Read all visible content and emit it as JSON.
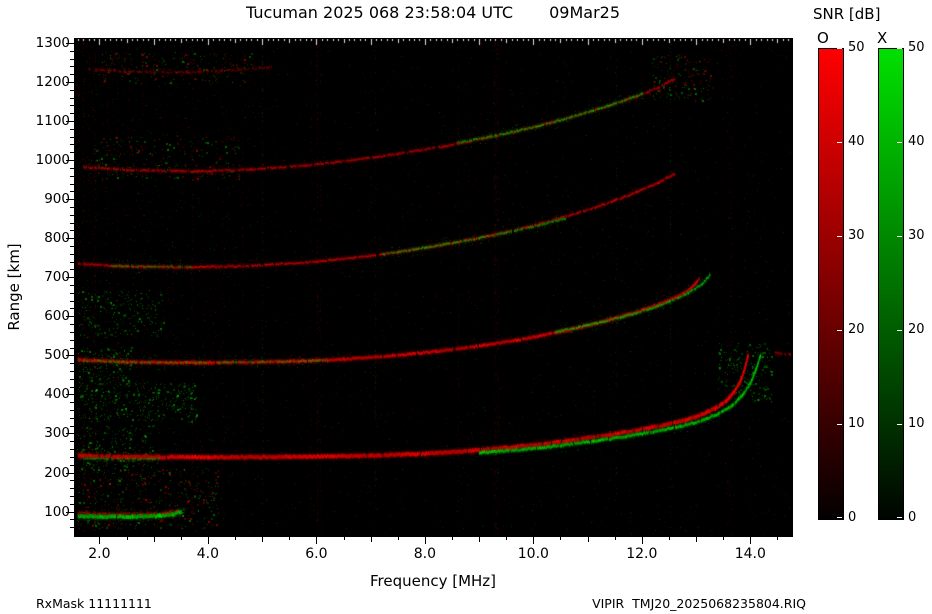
{
  "header": {
    "station_time": "Tucuman 2025 068 23:58:04 UTC",
    "date": "09Mar25"
  },
  "footer": {
    "left": "RxMask 11111111",
    "right": "VIPIR  TMJ20_2025068235804.RIQ"
  },
  "colorbar": {
    "title": "SNR [dB]",
    "o_label": "O",
    "x_label": "X",
    "min": 0,
    "max": 50,
    "ticks": [
      0,
      10,
      20,
      30,
      40,
      50
    ],
    "o_color": "#ff0000",
    "x_color": "#00dd00"
  },
  "chart_data": {
    "type": "heatmap",
    "title": "Tucuman 2025 068 23:58:04 UTC 09Mar25",
    "xlabel": "Frequency [MHz]",
    "ylabel": "Range [km]",
    "xlim": [
      1.55,
      14.75
    ],
    "ylim": [
      40,
      1310
    ],
    "xticks": [
      2,
      4,
      6,
      8,
      10,
      12,
      14
    ],
    "xtick_labels": [
      "2.0",
      "4.0",
      "6.0",
      "8.0",
      "10.0",
      "12.0",
      "14.0"
    ],
    "yticks": [
      100,
      200,
      300,
      400,
      500,
      600,
      700,
      800,
      900,
      1000,
      1100,
      1200,
      1300
    ],
    "background": "#000000",
    "modes": {
      "O": "#ff0000",
      "X": "#00dd00"
    },
    "traces": [
      {
        "name": "E-layer-X",
        "mode": "X",
        "w": 4,
        "alpha": 0.95,
        "points": [
          [
            1.6,
            88
          ],
          [
            2.0,
            87
          ],
          [
            2.6,
            87
          ],
          [
            3.1,
            89
          ],
          [
            3.35,
            93
          ],
          [
            3.5,
            100
          ]
        ]
      },
      {
        "name": "E-layer-O",
        "mode": "O",
        "w": 2,
        "alpha": 0.55,
        "points": [
          [
            1.6,
            97
          ],
          [
            2.1,
            95
          ],
          [
            2.7,
            95
          ],
          [
            3.2,
            97
          ],
          [
            3.45,
            103
          ]
        ]
      },
      {
        "name": "F-1hop-O",
        "mode": "O",
        "w": 4,
        "alpha": 0.95,
        "points": [
          [
            1.6,
            243
          ],
          [
            2.5,
            240
          ],
          [
            4.0,
            239
          ],
          [
            5.5,
            240
          ],
          [
            7.0,
            243
          ],
          [
            8.0,
            248
          ],
          [
            8.8,
            255
          ],
          [
            9.5,
            263
          ],
          [
            10.2,
            273
          ],
          [
            10.8,
            284
          ],
          [
            11.4,
            296
          ],
          [
            11.9,
            308
          ],
          [
            12.4,
            321
          ],
          [
            12.8,
            334
          ],
          [
            13.1,
            348
          ],
          [
            13.35,
            364
          ],
          [
            13.55,
            383
          ],
          [
            13.7,
            407
          ],
          [
            13.82,
            437
          ],
          [
            13.9,
            470
          ],
          [
            13.95,
            500
          ]
        ]
      },
      {
        "name": "F-1hop-X",
        "mode": "X",
        "w": 3,
        "alpha": 0.9,
        "points": [
          [
            9.0,
            250
          ],
          [
            9.8,
            259
          ],
          [
            10.5,
            269
          ],
          [
            11.1,
            280
          ],
          [
            11.7,
            292
          ],
          [
            12.2,
            304
          ],
          [
            12.7,
            318
          ],
          [
            13.1,
            333
          ],
          [
            13.4,
            350
          ],
          [
            13.65,
            371
          ],
          [
            13.85,
            398
          ],
          [
            14.0,
            430
          ],
          [
            14.1,
            465
          ],
          [
            14.18,
            500
          ]
        ]
      },
      {
        "name": "F-1hop-X-lowf",
        "mode": "X",
        "w": 2,
        "alpha": 0.45,
        "points": [
          [
            1.7,
            236
          ],
          [
            2.4,
            234
          ],
          [
            3.1,
            235
          ]
        ]
      },
      {
        "name": "F-2hop-O",
        "mode": "O",
        "w": 3,
        "alpha": 0.9,
        "points": [
          [
            1.6,
            489
          ],
          [
            2.5,
            483
          ],
          [
            4.0,
            481
          ],
          [
            5.5,
            484
          ],
          [
            6.5,
            490
          ],
          [
            7.4,
            499
          ],
          [
            8.2,
            510
          ],
          [
            9.0,
            524
          ],
          [
            9.7,
            539
          ],
          [
            10.3,
            555
          ],
          [
            10.9,
            573
          ],
          [
            11.4,
            591
          ],
          [
            11.9,
            611
          ],
          [
            12.3,
            630
          ],
          [
            12.65,
            650
          ],
          [
            12.9,
            671
          ],
          [
            13.05,
            695
          ]
        ]
      },
      {
        "name": "F-2hop-X",
        "mode": "X",
        "w": 2,
        "alpha": 0.75,
        "points": [
          [
            10.4,
            560
          ],
          [
            11.0,
            577
          ],
          [
            11.6,
            597
          ],
          [
            12.1,
            617
          ],
          [
            12.5,
            637
          ],
          [
            12.85,
            659
          ],
          [
            13.1,
            682
          ],
          [
            13.25,
            706
          ]
        ]
      },
      {
        "name": "F-2hop-X-lowf",
        "mode": "X",
        "w": 2,
        "alpha": 0.45,
        "points": [
          [
            1.7,
            486
          ],
          [
            2.6,
            482
          ],
          [
            3.6,
            481
          ],
          [
            4.6,
            483
          ],
          [
            5.5,
            484
          ],
          [
            6.2,
            488
          ]
        ]
      },
      {
        "name": "F-3hop-O",
        "mode": "O",
        "w": 2,
        "alpha": 0.8,
        "points": [
          [
            1.6,
            734
          ],
          [
            2.4,
            728
          ],
          [
            3.6,
            725
          ],
          [
            4.8,
            729
          ],
          [
            5.8,
            738
          ],
          [
            6.7,
            750
          ],
          [
            7.5,
            764
          ],
          [
            8.2,
            780
          ],
          [
            8.9,
            798
          ],
          [
            9.5,
            816
          ],
          [
            10.1,
            836
          ],
          [
            10.6,
            856
          ],
          [
            11.1,
            877
          ],
          [
            11.5,
            897
          ],
          [
            11.9,
            918
          ],
          [
            12.3,
            942
          ],
          [
            12.6,
            965
          ]
        ]
      },
      {
        "name": "F-3hop-X",
        "mode": "X",
        "w": 2,
        "alpha": 0.6,
        "points": [
          [
            7.2,
            758
          ],
          [
            8.0,
            776
          ],
          [
            8.8,
            795
          ],
          [
            9.5,
            814
          ],
          [
            10.1,
            833
          ],
          [
            10.6,
            852
          ]
        ]
      },
      {
        "name": "F-3hop-X-lowf",
        "mode": "X",
        "w": 2,
        "alpha": 0.4,
        "points": [
          [
            2.2,
            729
          ],
          [
            3.0,
            727
          ],
          [
            3.7,
            727
          ]
        ]
      },
      {
        "name": "F-4hop-O",
        "mode": "O",
        "w": 2,
        "alpha": 0.7,
        "points": [
          [
            1.7,
            982
          ],
          [
            2.6,
            974
          ],
          [
            3.8,
            971
          ],
          [
            4.8,
            976
          ],
          [
            5.8,
            986
          ],
          [
            6.7,
            1000
          ],
          [
            7.5,
            1016
          ],
          [
            8.3,
            1034
          ],
          [
            9.0,
            1053
          ],
          [
            9.7,
            1074
          ],
          [
            10.3,
            1095
          ],
          [
            10.9,
            1118
          ],
          [
            11.4,
            1140
          ],
          [
            11.9,
            1163
          ],
          [
            12.3,
            1186
          ],
          [
            12.6,
            1208
          ]
        ]
      },
      {
        "name": "F-4hop-X",
        "mode": "X",
        "w": 2,
        "alpha": 0.65,
        "points": [
          [
            8.6,
            1044
          ],
          [
            9.3,
            1063
          ],
          [
            10.0,
            1084
          ],
          [
            10.6,
            1106
          ],
          [
            11.1,
            1127
          ],
          [
            11.6,
            1149
          ],
          [
            12.0,
            1170
          ]
        ]
      },
      {
        "name": "F-5hop-O",
        "mode": "O",
        "w": 2,
        "alpha": 0.4,
        "points": [
          [
            1.8,
            1232
          ],
          [
            2.6,
            1226
          ],
          [
            3.6,
            1224
          ],
          [
            4.4,
            1229
          ],
          [
            5.2,
            1238
          ]
        ]
      },
      {
        "name": "edge-right-O",
        "mode": "O",
        "w": 2,
        "alpha": 0.55,
        "points": [
          [
            14.45,
            506
          ],
          [
            14.75,
            502
          ]
        ]
      }
    ],
    "noise_patches": [
      {
        "f": [
          1.6,
          3.8
        ],
        "r": [
          330,
          430
        ],
        "mode": "X",
        "n": 420
      },
      {
        "f": [
          1.6,
          3.2
        ],
        "r": [
          545,
          665
        ],
        "mode": "X",
        "n": 260
      },
      {
        "f": [
          1.6,
          4.2
        ],
        "r": [
          55,
          210
        ],
        "mode": "mix",
        "n": 500
      },
      {
        "f": [
          1.9,
          4.6
        ],
        "r": [
          945,
          1060
        ],
        "mode": "mix",
        "n": 280
      },
      {
        "f": [
          2.0,
          4.8
        ],
        "r": [
          1195,
          1275
        ],
        "mode": "mix",
        "n": 240
      },
      {
        "f": [
          1.6,
          3.0
        ],
        "r": [
          205,
          320
        ],
        "mode": "X",
        "n": 220
      },
      {
        "f": [
          13.4,
          14.4
        ],
        "r": [
          380,
          530
        ],
        "mode": "X",
        "n": 240
      },
      {
        "f": [
          12.2,
          13.3
        ],
        "r": [
          1150,
          1270
        ],
        "mode": "mix",
        "n": 180
      },
      {
        "f": [
          1.6,
          2.6
        ],
        "r": [
          430,
          520
        ],
        "mode": "X",
        "n": 160
      }
    ]
  }
}
